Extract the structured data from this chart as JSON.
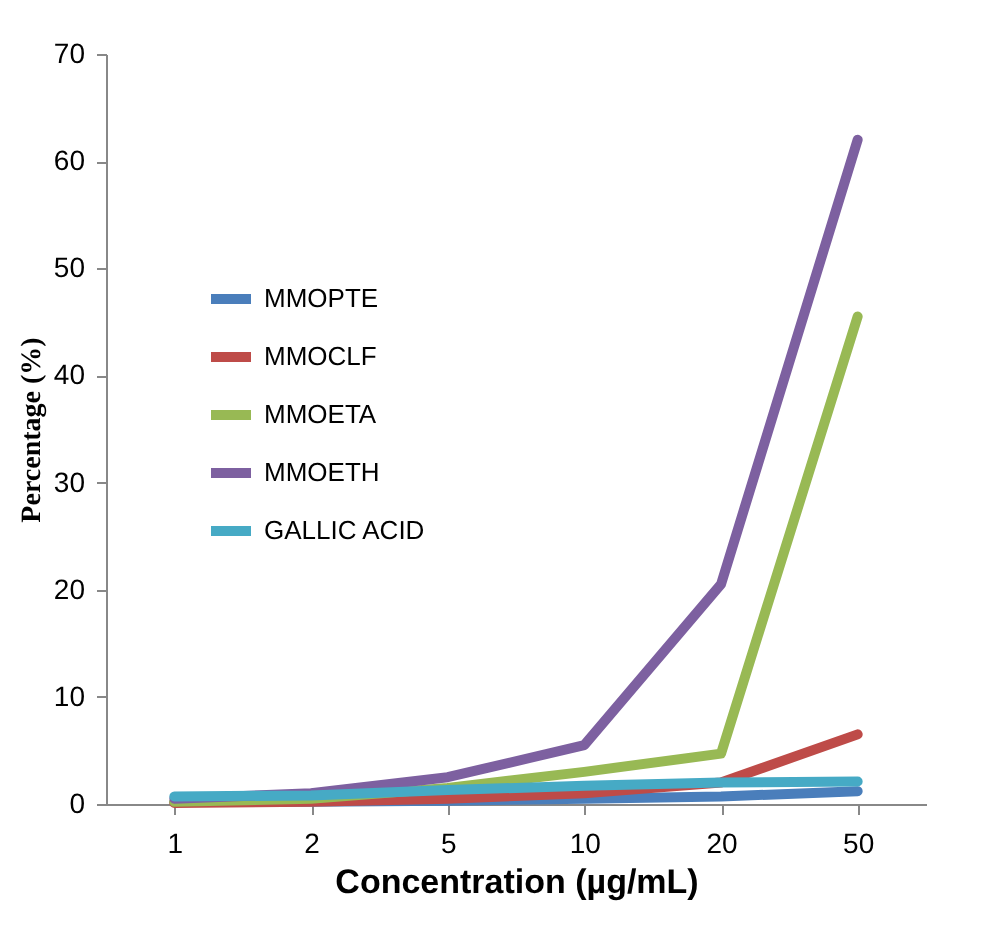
{
  "chart_data": {
    "type": "line",
    "xlabel": "Concentration (µg/mL)",
    "ylabel": "Percentage (%)",
    "categories": [
      "1",
      "2",
      "5",
      "10",
      "20",
      "50"
    ],
    "ylim": [
      0,
      70
    ],
    "yticks": [
      0,
      10,
      20,
      30,
      40,
      50,
      60,
      70
    ],
    "grid": false,
    "legend": "left",
    "marker": "none",
    "line_style": "solid",
    "series": [
      {
        "name": "MMOPTE",
        "color": "#4a7ebb",
        "values": [
          0.2,
          0.2,
          0.3,
          0.5,
          0.7,
          1.2
        ]
      },
      {
        "name": "MMOCLF",
        "color": "#be4b48",
        "values": [
          0.1,
          0.2,
          0.5,
          1,
          2,
          6.5
        ]
      },
      {
        "name": "MMOETA",
        "color": "#98b954",
        "values": [
          0.2,
          0.5,
          1.5,
          3,
          4.7,
          45.5
        ]
      },
      {
        "name": "MMOETH",
        "color": "#7d60a0",
        "values": [
          0.5,
          1,
          2.5,
          5.5,
          20.5,
          62
        ]
      },
      {
        "name": "GALLIC ACID",
        "color": "#46aac5",
        "values": [
          0.7,
          0.8,
          1.3,
          1.7,
          2,
          2.1
        ]
      }
    ]
  }
}
